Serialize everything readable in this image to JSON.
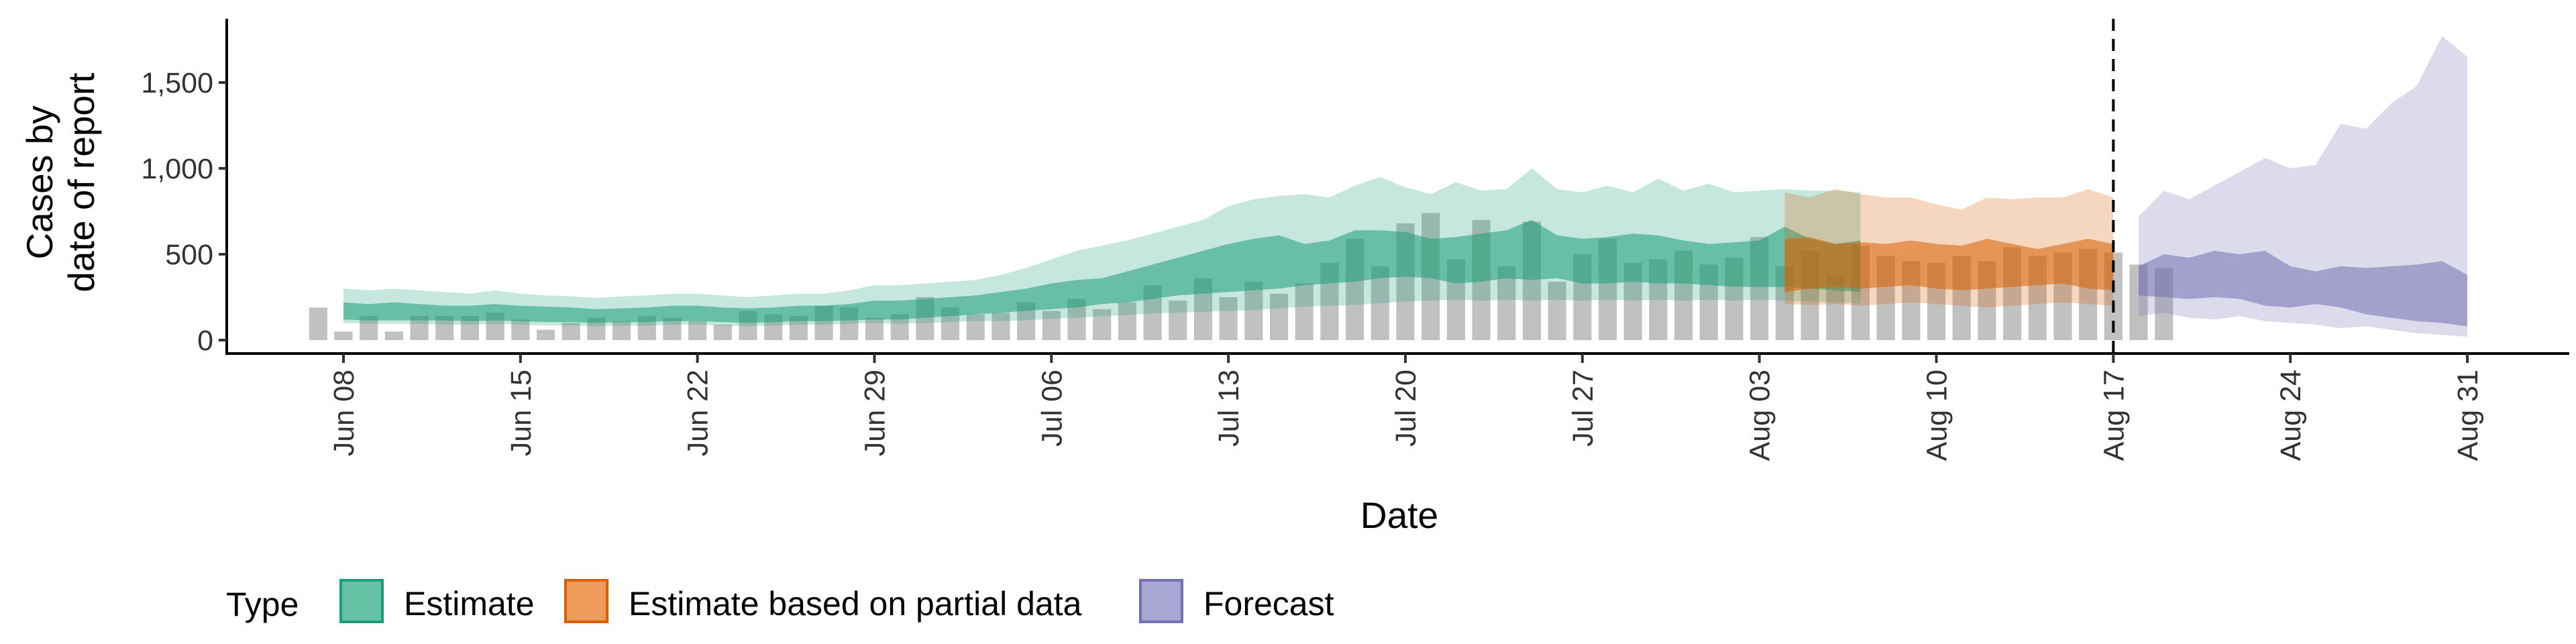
{
  "chart_data": {
    "type": "area",
    "xlabel": "Date",
    "ylabel": [
      "Cases by",
      "date of report"
    ],
    "ylim": [
      0,
      1850
    ],
    "y_ticks": [
      0,
      500,
      1000,
      1500
    ],
    "y_tick_labels": [
      "0",
      "500",
      "1,000",
      "1,500"
    ],
    "x_tick_labels": [
      "Jun 08",
      "Jun 15",
      "Jun 22",
      "Jun 29",
      "Jul 06",
      "Jul 13",
      "Jul 20",
      "Jul 27",
      "Aug 03",
      "Aug 10",
      "Aug 17",
      "Aug 24",
      "Aug 31"
    ],
    "x_tick_days": [
      0,
      7,
      14,
      21,
      28,
      35,
      42,
      49,
      56,
      63,
      70,
      77,
      84
    ],
    "xlim": [
      -2,
      87
    ],
    "vline_day": 70,
    "legend": {
      "title": "Type",
      "position": "bottom",
      "entries": [
        {
          "label": "Estimate",
          "fill": "#66C2A5",
          "stroke": "#1B9E77"
        },
        {
          "label": "Estimate based on partial data",
          "fill": "#EE9A5A",
          "stroke": "#D95F02"
        },
        {
          "label": "Forecast",
          "fill": "#A9A6D4",
          "stroke": "#7570B3"
        }
      ]
    },
    "colors": {
      "Estimate": "#1B9E77",
      "Estimate based on partial data": "#D95F02",
      "Forecast": "#7570B3",
      "reported_bars": "#BEBEBE"
    },
    "reported_cases": {
      "start_day": -1,
      "values": [
        190,
        50,
        140,
        50,
        140,
        140,
        140,
        160,
        120,
        60,
        100,
        130,
        110,
        140,
        130,
        110,
        90,
        170,
        150,
        140,
        200,
        190,
        130,
        150,
        250,
        190,
        150,
        160,
        220,
        170,
        240,
        180,
        220,
        320,
        230,
        360,
        250,
        340,
        270,
        330,
        450,
        590,
        430,
        680,
        740,
        470,
        700,
        430,
        690,
        340,
        500,
        590,
        450,
        470,
        520,
        440,
        480,
        600,
        430,
        520,
        380,
        550,
        490,
        460,
        450,
        490,
        460,
        540,
        490,
        510,
        530,
        510,
        440,
        420
      ]
    },
    "series": [
      {
        "name": "Estimate",
        "start_day": 0,
        "band_outer_low": [
          100,
          95,
          95,
          95,
          90,
          90,
          95,
          90,
          85,
          85,
          80,
          85,
          85,
          90,
          90,
          85,
          80,
          85,
          90,
          90,
          95,
          100,
          95,
          100,
          105,
          110,
          110,
          115,
          125,
          130,
          140,
          145,
          155,
          160,
          165,
          170,
          175,
          185,
          195,
          200,
          205,
          215,
          225,
          230,
          235,
          230,
          235,
          230,
          235,
          230,
          235,
          230,
          235,
          230,
          235,
          230,
          235,
          230,
          225,
          220,
          215
        ],
        "band_inner_low": [
          120,
          115,
          115,
          115,
          115,
          110,
          115,
          110,
          105,
          105,
          100,
          105,
          105,
          110,
          110,
          105,
          100,
          105,
          110,
          110,
          115,
          120,
          120,
          130,
          140,
          150,
          160,
          170,
          180,
          190,
          210,
          220,
          240,
          260,
          270,
          280,
          290,
          300,
          320,
          330,
          340,
          360,
          370,
          360,
          330,
          340,
          360,
          350,
          360,
          330,
          330,
          340,
          330,
          330,
          320,
          310,
          310,
          310,
          300,
          290,
          280
        ],
        "band_inner_high": [
          220,
          210,
          220,
          210,
          200,
          200,
          210,
          200,
          195,
          190,
          180,
          185,
          190,
          200,
          200,
          190,
          185,
          190,
          200,
          200,
          210,
          230,
          230,
          240,
          250,
          260,
          280,
          300,
          330,
          350,
          360,
          400,
          440,
          480,
          520,
          560,
          590,
          610,
          560,
          580,
          640,
          640,
          630,
          590,
          600,
          620,
          640,
          700,
          610,
          590,
          600,
          620,
          610,
          580,
          560,
          570,
          580,
          660,
          590,
          560,
          580
        ],
        "band_outer_high": [
          300,
          290,
          300,
          290,
          280,
          270,
          290,
          270,
          260,
          255,
          245,
          255,
          260,
          270,
          270,
          260,
          250,
          260,
          270,
          270,
          290,
          320,
          320,
          330,
          340,
          350,
          380,
          420,
          470,
          520,
          550,
          580,
          620,
          660,
          700,
          780,
          820,
          840,
          850,
          830,
          900,
          950,
          890,
          850,
          920,
          870,
          880,
          1000,
          880,
          860,
          900,
          860,
          940,
          870,
          910,
          860,
          870,
          880,
          870,
          870,
          860
        ]
      },
      {
        "name": "Estimate based on partial data",
        "start_day": 57,
        "band_outer_low": [
          210,
          205,
          210,
          200,
          210,
          220,
          210,
          200,
          190,
          200,
          210,
          220,
          210,
          200
        ],
        "band_inner_low": [
          280,
          300,
          310,
          300,
          310,
          320,
          300,
          290,
          300,
          310,
          320,
          330,
          300,
          290
        ],
        "band_inner_high": [
          590,
          600,
          560,
          570,
          560,
          580,
          560,
          550,
          590,
          560,
          530,
          560,
          590,
          560
        ],
        "band_outer_high": [
          860,
          830,
          880,
          850,
          830,
          830,
          790,
          760,
          830,
          820,
          830,
          830,
          880,
          830
        ]
      },
      {
        "name": "Forecast",
        "start_day": 71,
        "band_outer_low": [
          140,
          160,
          130,
          120,
          140,
          110,
          100,
          90,
          70,
          80,
          60,
          40,
          30,
          20
        ],
        "band_inner_low": [
          260,
          250,
          240,
          250,
          240,
          200,
          190,
          210,
          190,
          150,
          130,
          110,
          100,
          80
        ],
        "band_inner_high": [
          430,
          500,
          480,
          520,
          500,
          520,
          430,
          400,
          430,
          420,
          430,
          440,
          460,
          380
        ],
        "band_outer_high": [
          720,
          870,
          820,
          900,
          980,
          1060,
          1000,
          1020,
          1260,
          1230,
          1380,
          1480,
          1770,
          1650
        ]
      }
    ]
  }
}
